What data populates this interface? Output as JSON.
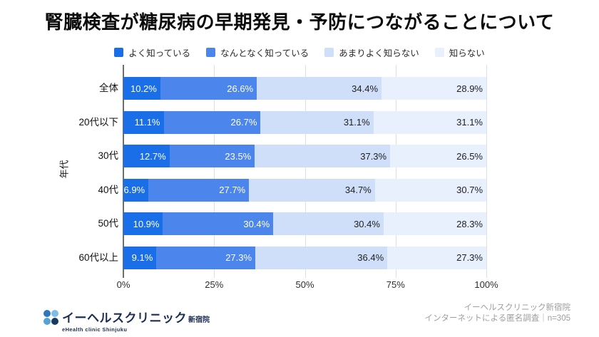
{
  "title": "腎臓検査が糖尿病の早期発見・予防につながることについて",
  "chart_data": {
    "type": "bar",
    "stacked": true,
    "orientation": "horizontal",
    "title": "腎臓検査が糖尿病の早期発見・予防につながることについて",
    "ylabel": "年代",
    "xlim": [
      0,
      100
    ],
    "grid": true,
    "legend_position": "top",
    "value_suffix": "%",
    "categories": [
      "全体",
      "20代以下",
      "30代",
      "40代",
      "50代",
      "60代以上"
    ],
    "series": [
      {
        "name": "よく知っている",
        "color": "#1a6fe8",
        "text_color": "#ffffff",
        "values": [
          10.2,
          11.1,
          12.7,
          6.9,
          10.9,
          9.1
        ]
      },
      {
        "name": "なんとなく知っている",
        "color": "#4c86ec",
        "text_color": "#ffffff",
        "values": [
          26.6,
          26.7,
          23.5,
          27.7,
          30.4,
          27.3
        ]
      },
      {
        "name": "あまりよく知らない",
        "color": "#cfdef9",
        "text_color": "#1f1f1f",
        "values": [
          34.4,
          31.1,
          37.3,
          34.7,
          30.4,
          36.4
        ]
      },
      {
        "name": "知らない",
        "color": "#e8f0fd",
        "text_color": "#1f1f1f",
        "values": [
          28.9,
          31.1,
          26.5,
          30.7,
          28.3,
          27.3
        ]
      }
    ],
    "x_ticks": [
      "0%",
      "25%",
      "50%",
      "75%",
      "100%"
    ]
  },
  "footer": {
    "logo": {
      "name_jp": "イーヘルスクリニック",
      "branch": "新宿院",
      "name_en": "eHealth clinic Shinjuku",
      "dot_colors": [
        "#2e77bd",
        "#7fbce6",
        "#56a1d6",
        "#17395f"
      ]
    },
    "source_line1": "イーヘルスクリニック新宿院",
    "source_line2": "インターネットによる匿名調査｜n=305"
  }
}
